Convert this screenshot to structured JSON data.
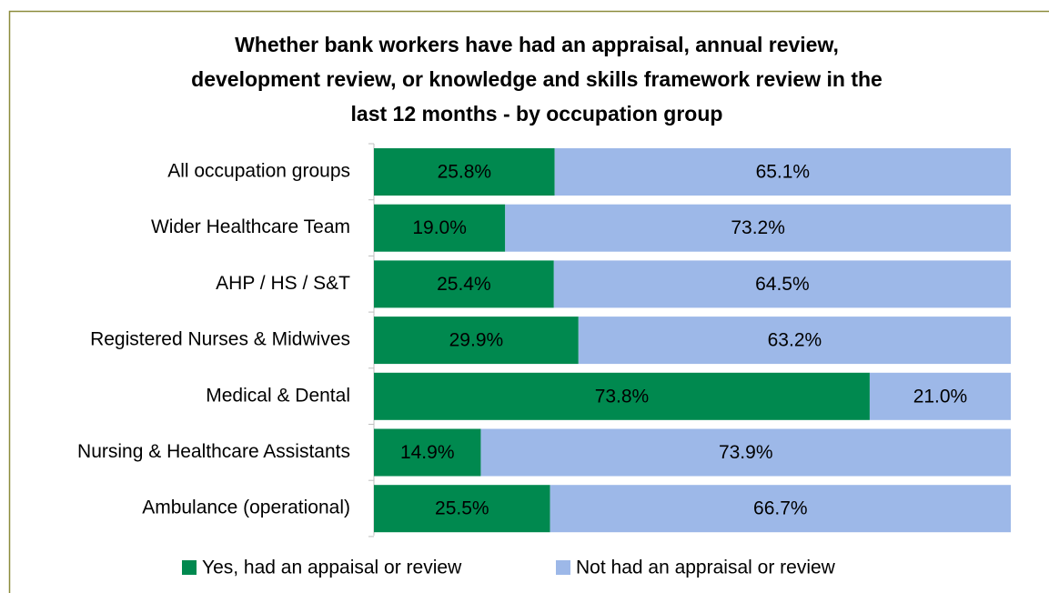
{
  "chart_data": {
    "type": "bar",
    "orientation": "horizontal",
    "stacking": "percent",
    "title": [
      "Whether bank workers have had an appraisal, annual review,",
      "development review, or knowledge and skills framework review in the",
      "last 12 months - by occupation group"
    ],
    "categories": [
      "All occupation groups",
      "Wider Healthcare Team",
      "AHP / HS / S&T",
      "Registered Nurses & Midwives",
      "Medical & Dental",
      "Nursing & Healthcare Assistants",
      "Ambulance (operational)"
    ],
    "series": [
      {
        "name": "Yes, had an appaisal or review",
        "color": "#00894f",
        "values": [
          25.8,
          19.0,
          25.4,
          29.9,
          73.8,
          14.9,
          25.5
        ],
        "value_labels": [
          "25.8%",
          "19.0%",
          "25.4%",
          "29.9%",
          "73.8%",
          "14.9%",
          "25.5%"
        ]
      },
      {
        "name": "Not had an appraisal or review",
        "color": "#9db8e8",
        "values": [
          65.1,
          73.2,
          64.5,
          63.2,
          21.0,
          73.9,
          66.7
        ],
        "value_labels": [
          "65.1%",
          "73.2%",
          "64.5%",
          "63.2%",
          "21.0%",
          "73.9%",
          "66.7%"
        ]
      }
    ],
    "legend": "bottom"
  }
}
